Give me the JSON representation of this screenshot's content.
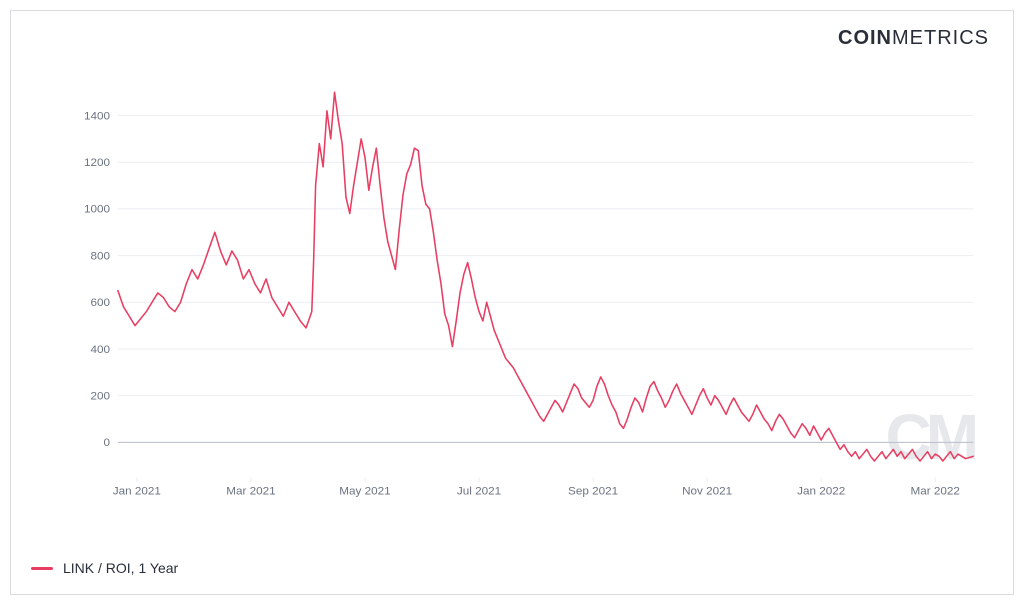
{
  "brand": {
    "bold": "COIN",
    "thin": "METRICS"
  },
  "watermark": "CM",
  "legend": {
    "label": "LINK / ROI, 1 Year"
  },
  "chart": {
    "type": "line",
    "series_color": "#e83e62",
    "line_width": 1.6,
    "background_color": "#ffffff",
    "border_color": "#d9dde2",
    "grid_color": "#eceef2",
    "zero_line_color": "#b8bdc7",
    "tick_font_color": "#6b7280",
    "tick_font_size": 12,
    "y": {
      "min": -150,
      "max": 1550,
      "ticks": [
        0,
        200,
        400,
        600,
        800,
        1000,
        1200,
        1400
      ]
    },
    "x": {
      "min": 0,
      "max": 450,
      "ticks": [
        {
          "pos": 10,
          "label": "Jan 2021"
        },
        {
          "pos": 70,
          "label": "Mar 2021"
        },
        {
          "pos": 130,
          "label": "May 2021"
        },
        {
          "pos": 190,
          "label": "Jul 2021"
        },
        {
          "pos": 250,
          "label": "Sep 2021"
        },
        {
          "pos": 310,
          "label": "Nov 2021"
        },
        {
          "pos": 370,
          "label": "Jan 2022"
        },
        {
          "pos": 430,
          "label": "Mar 2022"
        }
      ]
    },
    "series": [
      {
        "name": "link-roi-1y",
        "data": [
          [
            0,
            650
          ],
          [
            3,
            580
          ],
          [
            6,
            540
          ],
          [
            9,
            500
          ],
          [
            12,
            530
          ],
          [
            15,
            560
          ],
          [
            18,
            600
          ],
          [
            21,
            640
          ],
          [
            24,
            620
          ],
          [
            27,
            580
          ],
          [
            30,
            560
          ],
          [
            33,
            600
          ],
          [
            36,
            680
          ],
          [
            39,
            740
          ],
          [
            42,
            700
          ],
          [
            45,
            760
          ],
          [
            48,
            830
          ],
          [
            51,
            900
          ],
          [
            54,
            820
          ],
          [
            57,
            760
          ],
          [
            60,
            820
          ],
          [
            63,
            780
          ],
          [
            66,
            700
          ],
          [
            69,
            740
          ],
          [
            72,
            680
          ],
          [
            75,
            640
          ],
          [
            78,
            700
          ],
          [
            81,
            620
          ],
          [
            84,
            580
          ],
          [
            87,
            540
          ],
          [
            90,
            600
          ],
          [
            93,
            560
          ],
          [
            96,
            520
          ],
          [
            99,
            490
          ],
          [
            102,
            560
          ],
          [
            103,
            780
          ],
          [
            104,
            1100
          ],
          [
            106,
            1280
          ],
          [
            108,
            1180
          ],
          [
            110,
            1420
          ],
          [
            112,
            1300
          ],
          [
            114,
            1500
          ],
          [
            116,
            1380
          ],
          [
            118,
            1280
          ],
          [
            120,
            1050
          ],
          [
            122,
            980
          ],
          [
            124,
            1100
          ],
          [
            126,
            1200
          ],
          [
            128,
            1300
          ],
          [
            130,
            1220
          ],
          [
            132,
            1080
          ],
          [
            134,
            1180
          ],
          [
            136,
            1260
          ],
          [
            138,
            1100
          ],
          [
            140,
            960
          ],
          [
            142,
            860
          ],
          [
            144,
            800
          ],
          [
            146,
            740
          ],
          [
            148,
            910
          ],
          [
            150,
            1060
          ],
          [
            152,
            1150
          ],
          [
            154,
            1190
          ],
          [
            156,
            1260
          ],
          [
            158,
            1250
          ],
          [
            160,
            1100
          ],
          [
            162,
            1020
          ],
          [
            164,
            1000
          ],
          [
            166,
            900
          ],
          [
            168,
            780
          ],
          [
            170,
            680
          ],
          [
            172,
            550
          ],
          [
            174,
            500
          ],
          [
            176,
            410
          ],
          [
            178,
            520
          ],
          [
            180,
            640
          ],
          [
            182,
            720
          ],
          [
            184,
            770
          ],
          [
            186,
            700
          ],
          [
            188,
            620
          ],
          [
            190,
            560
          ],
          [
            192,
            520
          ],
          [
            194,
            600
          ],
          [
            196,
            540
          ],
          [
            198,
            480
          ],
          [
            200,
            440
          ],
          [
            202,
            400
          ],
          [
            204,
            360
          ],
          [
            206,
            340
          ],
          [
            208,
            320
          ],
          [
            210,
            290
          ],
          [
            212,
            260
          ],
          [
            214,
            230
          ],
          [
            216,
            200
          ],
          [
            218,
            170
          ],
          [
            220,
            140
          ],
          [
            222,
            110
          ],
          [
            224,
            90
          ],
          [
            226,
            120
          ],
          [
            228,
            150
          ],
          [
            230,
            180
          ],
          [
            232,
            160
          ],
          [
            234,
            130
          ],
          [
            236,
            170
          ],
          [
            238,
            210
          ],
          [
            240,
            250
          ],
          [
            242,
            230
          ],
          [
            244,
            190
          ],
          [
            246,
            170
          ],
          [
            248,
            150
          ],
          [
            250,
            180
          ],
          [
            252,
            240
          ],
          [
            254,
            280
          ],
          [
            256,
            250
          ],
          [
            258,
            200
          ],
          [
            260,
            160
          ],
          [
            262,
            130
          ],
          [
            264,
            80
          ],
          [
            266,
            60
          ],
          [
            268,
            100
          ],
          [
            270,
            150
          ],
          [
            272,
            190
          ],
          [
            274,
            170
          ],
          [
            276,
            130
          ],
          [
            278,
            190
          ],
          [
            280,
            240
          ],
          [
            282,
            260
          ],
          [
            284,
            220
          ],
          [
            286,
            190
          ],
          [
            288,
            150
          ],
          [
            290,
            180
          ],
          [
            292,
            220
          ],
          [
            294,
            250
          ],
          [
            296,
            210
          ],
          [
            298,
            180
          ],
          [
            300,
            150
          ],
          [
            302,
            120
          ],
          [
            304,
            160
          ],
          [
            306,
            200
          ],
          [
            308,
            230
          ],
          [
            310,
            190
          ],
          [
            312,
            160
          ],
          [
            314,
            200
          ],
          [
            316,
            180
          ],
          [
            318,
            150
          ],
          [
            320,
            120
          ],
          [
            322,
            160
          ],
          [
            324,
            190
          ],
          [
            326,
            160
          ],
          [
            328,
            130
          ],
          [
            330,
            110
          ],
          [
            332,
            90
          ],
          [
            334,
            120
          ],
          [
            336,
            160
          ],
          [
            338,
            130
          ],
          [
            340,
            100
          ],
          [
            342,
            80
          ],
          [
            344,
            50
          ],
          [
            346,
            90
          ],
          [
            348,
            120
          ],
          [
            350,
            100
          ],
          [
            352,
            70
          ],
          [
            354,
            40
          ],
          [
            356,
            20
          ],
          [
            358,
            50
          ],
          [
            360,
            80
          ],
          [
            362,
            60
          ],
          [
            364,
            30
          ],
          [
            366,
            70
          ],
          [
            368,
            40
          ],
          [
            370,
            10
          ],
          [
            372,
            40
          ],
          [
            374,
            60
          ],
          [
            376,
            30
          ],
          [
            378,
            0
          ],
          [
            380,
            -30
          ],
          [
            382,
            -10
          ],
          [
            384,
            -40
          ],
          [
            386,
            -60
          ],
          [
            388,
            -40
          ],
          [
            390,
            -70
          ],
          [
            392,
            -50
          ],
          [
            394,
            -30
          ],
          [
            396,
            -60
          ],
          [
            398,
            -80
          ],
          [
            400,
            -60
          ],
          [
            402,
            -40
          ],
          [
            404,
            -70
          ],
          [
            406,
            -50
          ],
          [
            408,
            -30
          ],
          [
            410,
            -60
          ],
          [
            412,
            -40
          ],
          [
            414,
            -70
          ],
          [
            416,
            -50
          ],
          [
            418,
            -30
          ],
          [
            420,
            -60
          ],
          [
            422,
            -80
          ],
          [
            424,
            -60
          ],
          [
            426,
            -40
          ],
          [
            428,
            -70
          ],
          [
            430,
            -50
          ],
          [
            432,
            -60
          ],
          [
            434,
            -80
          ],
          [
            436,
            -60
          ],
          [
            438,
            -40
          ],
          [
            440,
            -70
          ],
          [
            442,
            -50
          ],
          [
            444,
            -60
          ],
          [
            446,
            -70
          ],
          [
            448,
            -65
          ],
          [
            450,
            -60
          ]
        ]
      }
    ]
  }
}
